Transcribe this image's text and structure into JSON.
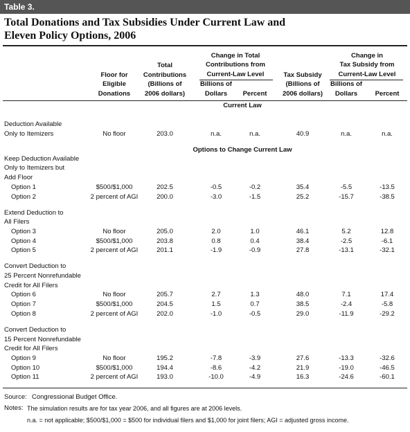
{
  "header": {
    "label": "Table 3.",
    "title": [
      "Total Donations and Tax Subsidies Under Current Law and",
      "Eleven Policy Options, 2006"
    ]
  },
  "columns": {
    "floor": [
      "Floor for",
      "Eligible",
      "Donations"
    ],
    "total": [
      "Total",
      "Contributions",
      "(Billions of",
      "2006 dollars)"
    ],
    "contrib_change": {
      "title": [
        "Change in Total",
        "Contributions from",
        "Current-Law Level"
      ],
      "dollars": [
        "Billions of",
        "Dollars"
      ],
      "percent": [
        "Percent"
      ]
    },
    "subsidy": [
      "Tax Subsidy",
      "(Billions of",
      "2006 dollars)"
    ],
    "subsidy_change": {
      "title": [
        "Change in",
        "Tax Subsidy from",
        "Current-Law Level"
      ],
      "dollars": [
        "Billions of",
        "Dollars"
      ],
      "percent": [
        "Percent"
      ]
    }
  },
  "sections": [
    {
      "heading": "Current Law",
      "groups": [
        {
          "label": [
            "Deduction Available",
            "Only to Itemizers"
          ],
          "rows": [
            {
              "cells": [
                "No floor",
                "203.0",
                "n.a.",
                "n.a.",
                "40.9",
                "n.a.",
                "n.a."
              ]
            }
          ]
        }
      ]
    },
    {
      "heading": "Options to Change Current Law",
      "groups": [
        {
          "label": [
            "Keep Deduction Available",
            "Only to Itemizers but",
            "Add Floor"
          ],
          "rows": [
            {
              "name": "Option 1",
              "cells": [
                "$500/$1,000",
                "202.5",
                "-0.5",
                "-0.2",
                "35.4",
                "-5.5",
                "-13.5"
              ]
            },
            {
              "name": "Option 2",
              "cells": [
                "2 percent of AGI",
                "200.0",
                "-3.0",
                "-1.5",
                "25.2",
                "-15.7",
                "-38.5"
              ]
            }
          ]
        },
        {
          "label": [
            "Extend Deduction to",
            "All Filers"
          ],
          "rows": [
            {
              "name": "Option 3",
              "cells": [
                "No floor",
                "205.0",
                "2.0",
                "1.0",
                "46.1",
                "5.2",
                "12.8"
              ]
            },
            {
              "name": "Option 4",
              "cells": [
                "$500/$1,000",
                "203.8",
                "0.8",
                "0.4",
                "38.4",
                "-2.5",
                "-6.1"
              ]
            },
            {
              "name": "Option 5",
              "cells": [
                "2 percent of AGI",
                "201.1",
                "-1.9",
                "-0.9",
                "27.8",
                "-13.1",
                "-32.1"
              ]
            }
          ]
        },
        {
          "label": [
            "Convert Deduction to",
            "25 Percent Nonrefundable",
            "Credit for All Filers"
          ],
          "rows": [
            {
              "name": "Option 6",
              "cells": [
                "No floor",
                "205.7",
                "2.7",
                "1.3",
                "48.0",
                "7.1",
                "17.4"
              ]
            },
            {
              "name": "Option 7",
              "cells": [
                "$500/$1,000",
                "204.5",
                "1.5",
                "0.7",
                "38.5",
                "-2.4",
                "-5.8"
              ]
            },
            {
              "name": "Option 8",
              "cells": [
                "2 percent of AGI",
                "202.0",
                "-1.0",
                "-0.5",
                "29.0",
                "-11.9",
                "-29.2"
              ]
            }
          ]
        },
        {
          "label": [
            "Convert Deduction to",
            "15 Percent Nonrefundable",
            "Credit for All Filers"
          ],
          "rows": [
            {
              "name": "Option 9",
              "cells": [
                "No floor",
                "195.2",
                "-7.8",
                "-3.9",
                "27.6",
                "-13.3",
                "-32.6"
              ]
            },
            {
              "name": "Option 10",
              "cells": [
                "$500/$1,000",
                "194.4",
                "-8.6",
                "-4.2",
                "21.9",
                "-19.0",
                "-46.5"
              ]
            },
            {
              "name": "Option 11",
              "cells": [
                "2 percent of AGI",
                "193.0",
                "-10.0",
                "-4.9",
                "16.3",
                "-24.6",
                "-60.1"
              ]
            }
          ]
        }
      ]
    }
  ],
  "footer": {
    "source": {
      "label": "Source:",
      "text": "Congressional Budget Office."
    },
    "notes": {
      "label": "Notes:",
      "lines": [
        "The simulation results are for tax year 2006, and all figures are at 2006 levels.",
        "n.a. = not applicable; $500/$1,000 = $500 for individual filers and $1,000 for joint filers; AGI = adjusted gross income."
      ]
    }
  }
}
